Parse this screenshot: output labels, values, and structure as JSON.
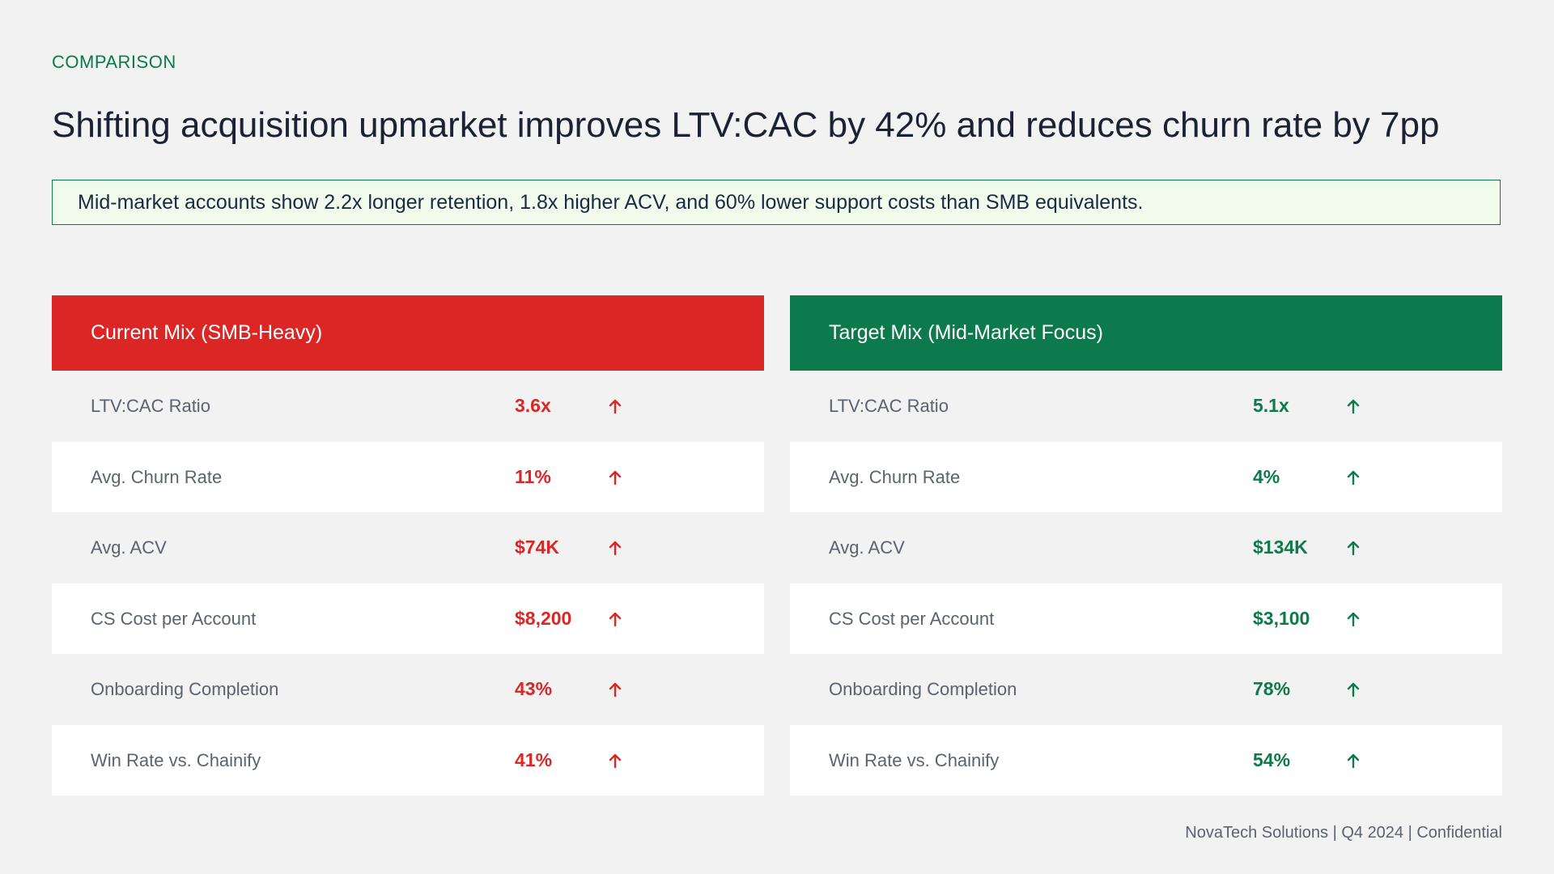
{
  "header": {
    "eyebrow": "COMPARISON",
    "title": "Shifting acquisition upmarket improves LTV:CAC by 42% and reduces churn rate by 7pp"
  },
  "callout": "Mid-market accounts show 2.2x longer retention, 1.8x higher ACV, and 60% lower support costs than SMB equivalents.",
  "panels": [
    {
      "title": "Current Mix (SMB-Heavy)",
      "rows": [
        {
          "label": "LTV:CAC Ratio",
          "value": "3.6x"
        },
        {
          "label": "Avg. Churn Rate",
          "value": "11%"
        },
        {
          "label": "Avg. ACV",
          "value": "$74K"
        },
        {
          "label": "CS Cost per Account",
          "value": "$8,200"
        },
        {
          "label": "Onboarding Completion",
          "value": "43%"
        },
        {
          "label": "Win Rate vs. Chainify",
          "value": "41%"
        }
      ]
    },
    {
      "title": "Target Mix (Mid-Market Focus)",
      "rows": [
        {
          "label": "LTV:CAC Ratio",
          "value": "5.1x"
        },
        {
          "label": "Avg. Churn Rate",
          "value": "4%"
        },
        {
          "label": "Avg. ACV",
          "value": "$134K"
        },
        {
          "label": "CS Cost per Account",
          "value": "$3,100"
        },
        {
          "label": "Onboarding Completion",
          "value": "78%"
        },
        {
          "label": "Win Rate vs. Chainify",
          "value": "54%"
        }
      ]
    }
  ],
  "footer": "NovaTech Solutions | Q4 2024 | Confidential"
}
